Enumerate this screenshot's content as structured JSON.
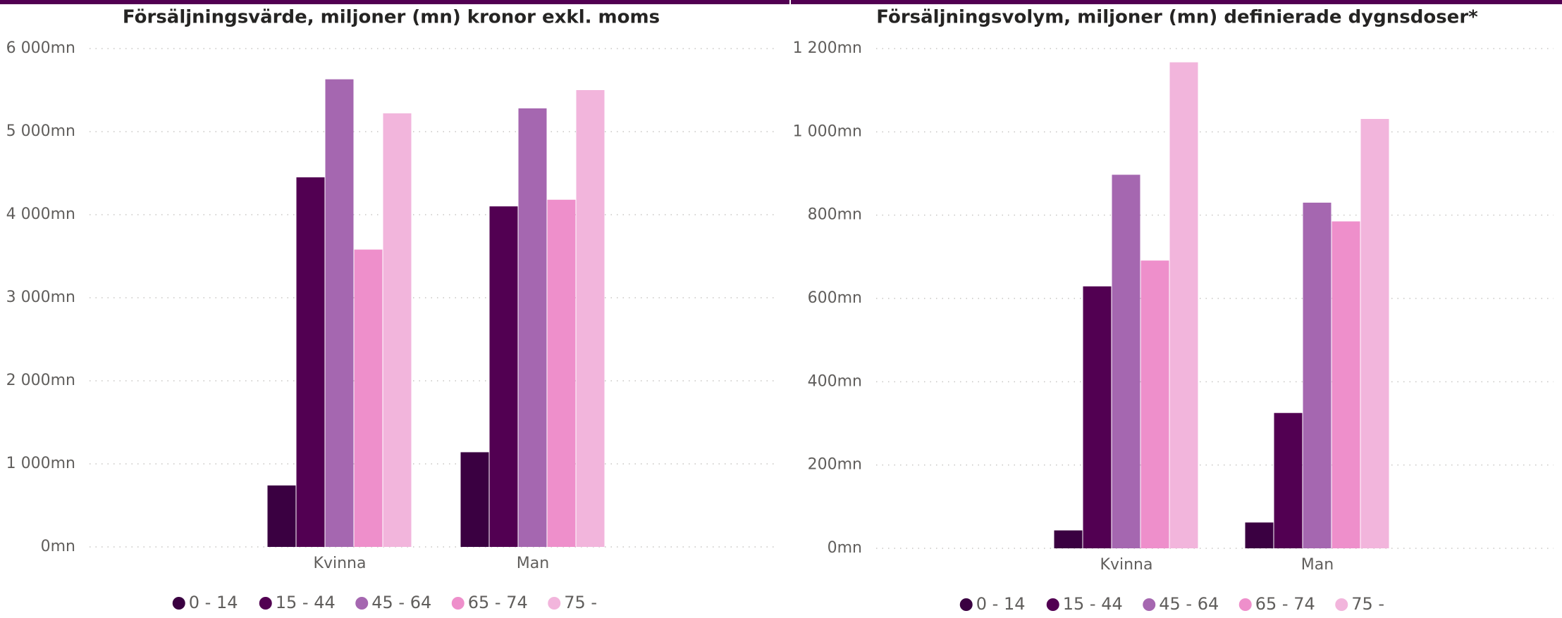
{
  "chart_data": [
    {
      "type": "bar",
      "title": "Försäljningsvärde, miljoner (mn) kronor exkl. moms",
      "categories": [
        "Kvinna",
        "Man"
      ],
      "series": [
        {
          "name": "0 - 14",
          "color": "#3a0041",
          "values": [
            740,
            1140
          ]
        },
        {
          "name": "15 - 44",
          "color": "#520052",
          "values": [
            4450,
            4100
          ]
        },
        {
          "name": "45 - 64",
          "color": "#a567b0",
          "values": [
            5630,
            5280
          ]
        },
        {
          "name": "65 - 74",
          "color": "#ee8fcb",
          "values": [
            3580,
            4180
          ]
        },
        {
          "name": "75 -",
          "color": "#f2b5dc",
          "values": [
            5220,
            5500
          ]
        }
      ],
      "ylim": [
        0,
        6000
      ],
      "yticks": [
        {
          "value": 0,
          "label": "0mn"
        },
        {
          "value": 1000,
          "label": "1 000mn"
        },
        {
          "value": 2000,
          "label": "2 000mn"
        },
        {
          "value": 3000,
          "label": "3 000mn"
        },
        {
          "value": 4000,
          "label": "4 000mn"
        },
        {
          "value": 5000,
          "label": "5 000mn"
        },
        {
          "value": 6000,
          "label": "6 000mn"
        }
      ],
      "grid": true,
      "legend": "bottom"
    },
    {
      "type": "bar",
      "title": "Försäljningsvolym, miljoner (mn) definierade dygnsdoser*",
      "categories": [
        "Kvinna",
        "Man"
      ],
      "series": [
        {
          "name": "0 - 14",
          "color": "#3a0041",
          "values": [
            43,
            62
          ]
        },
        {
          "name": "15 - 44",
          "color": "#520052",
          "values": [
            629,
            325
          ]
        },
        {
          "name": "45 - 64",
          "color": "#a567b0",
          "values": [
            897,
            830
          ]
        },
        {
          "name": "65 - 74",
          "color": "#ee8fcb",
          "values": [
            691,
            785
          ]
        },
        {
          "name": "75 -",
          "color": "#f2b5dc",
          "values": [
            1167,
            1031
          ]
        }
      ],
      "ylim": [
        0,
        1200
      ],
      "yticks": [
        {
          "value": 0,
          "label": "0mn"
        },
        {
          "value": 200,
          "label": "200mn"
        },
        {
          "value": 400,
          "label": "400mn"
        },
        {
          "value": 600,
          "label": "600mn"
        },
        {
          "value": 800,
          "label": "800mn"
        },
        {
          "value": 1000,
          "label": "1 000mn"
        },
        {
          "value": 1200,
          "label": "1 200mn"
        }
      ],
      "grid": true,
      "legend": "bottom"
    }
  ]
}
